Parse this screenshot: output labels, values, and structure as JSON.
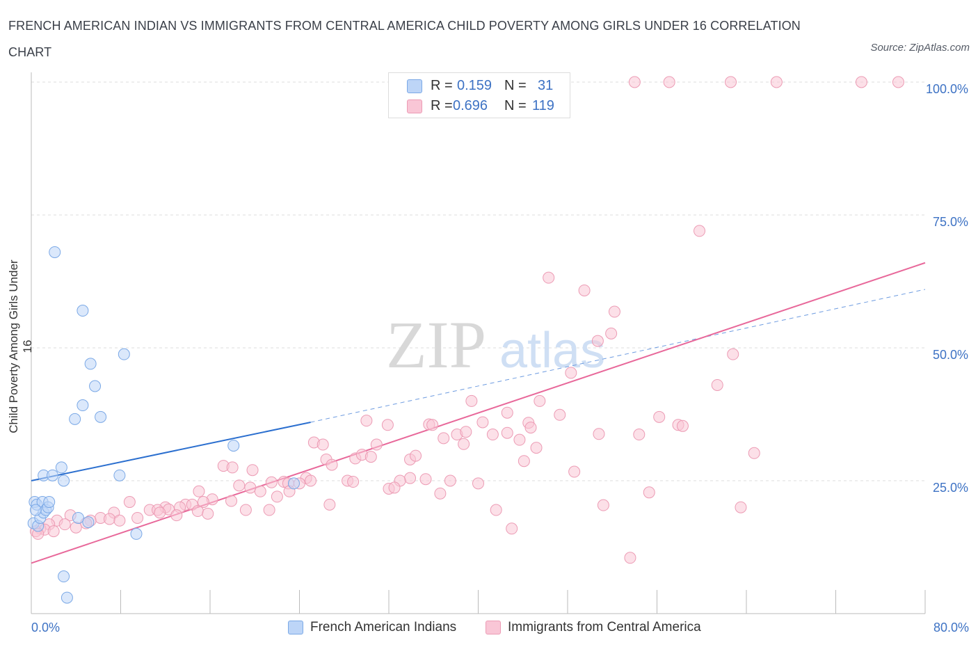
{
  "title": "FRENCH AMERICAN INDIAN VS IMMIGRANTS FROM CENTRAL AMERICA CHILD POVERTY AMONG GIRLS UNDER 16 CORRELATION CHART",
  "source": "Source: ZipAtlas.com",
  "watermark": {
    "zip": "ZIP",
    "atlas": "atlas"
  },
  "legend": {
    "r_label": "R =",
    "n_label": "N =",
    "series": [
      {
        "name": "French American Indians",
        "r": "0.159",
        "n": "31",
        "color": "#bdd5f7",
        "edge": "#7aa8e6",
        "line": "#2b6fcf"
      },
      {
        "name": "Immigrants from Central America",
        "r": "0.696",
        "n": "119",
        "color": "#f9c6d6",
        "edge": "#ec9bb4",
        "line": "#e8689a"
      }
    ]
  },
  "chart_data": {
    "type": "scatter",
    "title": "FRENCH AMERICAN INDIAN VS IMMIGRANTS FROM CENTRAL AMERICA CHILD POVERTY AMONG GIRLS UNDER 16 CORRELATION CHART",
    "xlabel": "",
    "ylabel": "Child Poverty Among Girls Under 16",
    "xlim": [
      0,
      80
    ],
    "ylim": [
      0,
      100
    ],
    "x_tick_labels": [
      "0.0%",
      "80.0%"
    ],
    "y_tick_labels": [
      "25.0%",
      "50.0%",
      "75.0%",
      "100.0%"
    ],
    "y_ticks": [
      25,
      50,
      75,
      100
    ],
    "grid": true,
    "series": [
      {
        "name": "French American Indians",
        "points": [
          [
            0.2,
            17.0
          ],
          [
            0.3,
            21.0
          ],
          [
            0.5,
            20.5
          ],
          [
            0.6,
            16.5
          ],
          [
            0.8,
            18.0
          ],
          [
            1.0,
            21.0
          ],
          [
            1.1,
            19.0
          ],
          [
            1.3,
            19.5
          ],
          [
            1.5,
            20.0
          ],
          [
            1.6,
            21.0
          ],
          [
            0.4,
            19.5
          ],
          [
            1.1,
            26.0
          ],
          [
            1.9,
            26.0
          ],
          [
            2.7,
            27.5
          ],
          [
            2.9,
            25.0
          ],
          [
            2.1,
            68.0
          ],
          [
            4.6,
            57.0
          ],
          [
            5.3,
            47.0
          ],
          [
            8.3,
            48.8
          ],
          [
            5.7,
            42.8
          ],
          [
            4.6,
            39.2
          ],
          [
            3.9,
            36.6
          ],
          [
            6.2,
            37.0
          ],
          [
            4.2,
            18.0
          ],
          [
            5.1,
            17.2
          ],
          [
            7.9,
            26.0
          ],
          [
            9.4,
            15.0
          ],
          [
            2.9,
            7.0
          ],
          [
            3.2,
            3.0
          ],
          [
            18.1,
            31.6
          ],
          [
            23.5,
            24.5
          ]
        ],
        "trend": {
          "x_start": 0,
          "y_start": 25.0,
          "x_end": 25,
          "y_end": 36.0,
          "dashed_x_end": 80,
          "dashed_y_end": 61.0
        }
      },
      {
        "name": "Immigrants from Central America",
        "points": [
          [
            54.0,
            100
          ],
          [
            57.1,
            100
          ],
          [
            62.6,
            100
          ],
          [
            66.7,
            100
          ],
          [
            74.3,
            100
          ],
          [
            77.6,
            100
          ],
          [
            59.8,
            72.0
          ],
          [
            46.3,
            63.2
          ],
          [
            49.5,
            60.8
          ],
          [
            52.2,
            56.8
          ],
          [
            51.9,
            52.7
          ],
          [
            50.7,
            51.3
          ],
          [
            62.8,
            48.8
          ],
          [
            48.3,
            45.3
          ],
          [
            61.4,
            43.0
          ],
          [
            39.4,
            40.0
          ],
          [
            45.5,
            40.0
          ],
          [
            56.2,
            37.0
          ],
          [
            42.6,
            37.8
          ],
          [
            47.3,
            37.4
          ],
          [
            30.0,
            36.3
          ],
          [
            31.9,
            35.5
          ],
          [
            35.6,
            35.6
          ],
          [
            35.9,
            35.5
          ],
          [
            40.4,
            36.0
          ],
          [
            44.5,
            35.9
          ],
          [
            57.9,
            35.5
          ],
          [
            58.3,
            35.3
          ],
          [
            38.1,
            33.7
          ],
          [
            38.9,
            34.2
          ],
          [
            41.3,
            33.7
          ],
          [
            42.6,
            34.0
          ],
          [
            44.7,
            35.0
          ],
          [
            50.8,
            33.8
          ],
          [
            54.4,
            33.7
          ],
          [
            36.9,
            33.0
          ],
          [
            43.7,
            32.7
          ],
          [
            25.3,
            32.2
          ],
          [
            26.1,
            31.8
          ],
          [
            30.9,
            31.8
          ],
          [
            38.7,
            31.9
          ],
          [
            45.2,
            31.2
          ],
          [
            64.7,
            30.2
          ],
          [
            26.4,
            29.0
          ],
          [
            29.0,
            29.2
          ],
          [
            29.6,
            29.9
          ],
          [
            30.4,
            29.5
          ],
          [
            33.9,
            29.0
          ],
          [
            34.4,
            29.7
          ],
          [
            44.1,
            28.7
          ],
          [
            26.9,
            28.0
          ],
          [
            17.2,
            27.8
          ],
          [
            18.0,
            27.5
          ],
          [
            19.8,
            27.0
          ],
          [
            48.6,
            26.7
          ],
          [
            24.6,
            25.5
          ],
          [
            33.9,
            25.5
          ],
          [
            35.3,
            25.3
          ],
          [
            21.5,
            24.7
          ],
          [
            22.6,
            24.8
          ],
          [
            23.0,
            24.5
          ],
          [
            24.0,
            24.5
          ],
          [
            25.0,
            25.0
          ],
          [
            28.3,
            25.0
          ],
          [
            28.8,
            24.8
          ],
          [
            33.0,
            25.0
          ],
          [
            37.5,
            25.0
          ],
          [
            40.0,
            24.5
          ],
          [
            18.6,
            24.1
          ],
          [
            19.6,
            23.7
          ],
          [
            20.5,
            23.0
          ],
          [
            23.1,
            23.0
          ],
          [
            32.0,
            23.5
          ],
          [
            32.5,
            23.7
          ],
          [
            15.0,
            23.0
          ],
          [
            22.0,
            22.0
          ],
          [
            36.6,
            22.6
          ],
          [
            55.3,
            22.8
          ],
          [
            16.2,
            21.5
          ],
          [
            17.9,
            21.2
          ],
          [
            15.4,
            21.0
          ],
          [
            13.8,
            20.5
          ],
          [
            14.4,
            20.5
          ],
          [
            8.8,
            21.0
          ],
          [
            12.0,
            20.0
          ],
          [
            13.3,
            20.0
          ],
          [
            10.6,
            19.5
          ],
          [
            11.3,
            19.5
          ],
          [
            12.3,
            19.6
          ],
          [
            14.9,
            19.3
          ],
          [
            19.2,
            19.5
          ],
          [
            21.3,
            19.5
          ],
          [
            26.7,
            20.5
          ],
          [
            41.6,
            19.5
          ],
          [
            51.2,
            20.4
          ],
          [
            63.5,
            20.0
          ],
          [
            7.4,
            19.0
          ],
          [
            11.5,
            19.0
          ],
          [
            15.8,
            18.8
          ],
          [
            13.0,
            18.5
          ],
          [
            6.2,
            18.0
          ],
          [
            7.0,
            17.8
          ],
          [
            9.5,
            18.0
          ],
          [
            5.3,
            17.5
          ],
          [
            7.9,
            17.5
          ],
          [
            3.5,
            18.5
          ],
          [
            2.3,
            17.5
          ],
          [
            4.9,
            17.0
          ],
          [
            3.0,
            16.8
          ],
          [
            1.6,
            16.8
          ],
          [
            4.0,
            16.2
          ],
          [
            0.8,
            16.0
          ],
          [
            1.2,
            15.8
          ],
          [
            0.4,
            15.5
          ],
          [
            2.0,
            15.5
          ],
          [
            0.6,
            15.0
          ],
          [
            43.0,
            16.0
          ],
          [
            53.6,
            10.5
          ]
        ],
        "trend": {
          "x_start": 0,
          "y_start": 9.5,
          "x_end": 80,
          "y_end": 66.0
        }
      }
    ]
  }
}
